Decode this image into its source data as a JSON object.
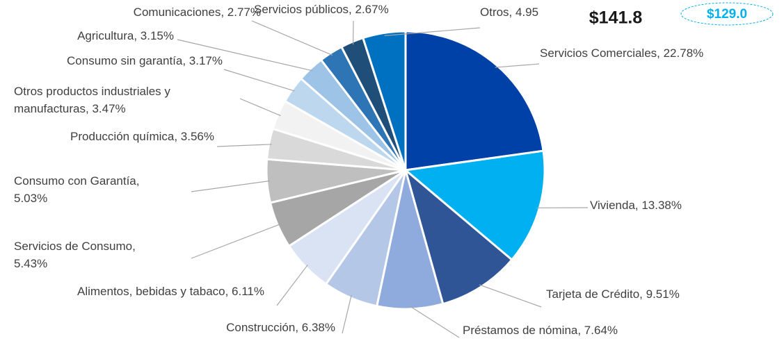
{
  "chart_data": {
    "type": "pie",
    "labels": [
      [
        "Servicios Comerciales, 22.78%"
      ],
      [
        "Vivienda, 13.38%"
      ],
      [
        "Tarjeta de Crédito, 9.51%"
      ],
      [
        "Préstamos de nómina, 7.64%"
      ],
      [
        "Construcción, 6.38%"
      ],
      [
        "Alimentos, bebidas y tabaco, 6.11%"
      ],
      [
        "Servicios de Consumo,",
        "5.43%"
      ],
      [
        "Consumo con Garantía,",
        "5.03%"
      ],
      [
        "Producción química, 3.56%"
      ],
      [
        "Otros productos industriales y",
        "manufacturas, 3.47%"
      ],
      [
        "Consumo sin garantía, 3.17%"
      ],
      [
        "Agricultura, 3.15%"
      ],
      [
        "Comunicaciones, 2.77%"
      ],
      [
        "Servicios públicos, 2.67%"
      ],
      [
        "Otros, 4.95"
      ]
    ],
    "values": [
      22.78,
      13.38,
      9.51,
      7.64,
      6.38,
      6.11,
      5.43,
      5.03,
      3.56,
      3.47,
      3.17,
      3.15,
      2.77,
      2.67,
      4.95
    ],
    "colors": [
      "#0041a8",
      "#00b0f0",
      "#2f5597",
      "#8faadc",
      "#b4c7e7",
      "#dae3f3",
      "#a6a6a6",
      "#bfbfbf",
      "#d9d9d9",
      "#f2f2f2",
      "#bdd7ee",
      "#9dc3e6",
      "#2e75b6",
      "#1f4e79",
      "#0070c0"
    ],
    "annotations": [
      "$141.8",
      "$129.0"
    ]
  }
}
